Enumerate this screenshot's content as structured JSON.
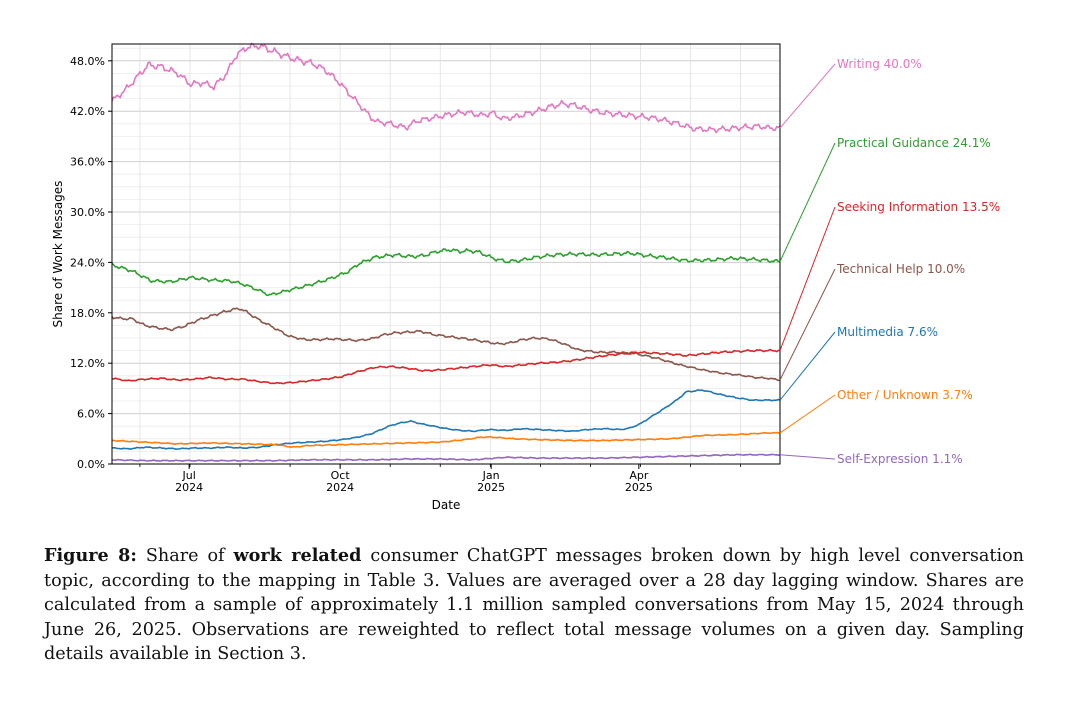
{
  "chart_data": {
    "type": "line",
    "title": "",
    "xlabel": "Date",
    "ylabel": "Share of Work Messages",
    "ylim": [
      0,
      50
    ],
    "yticks": [
      0,
      6,
      12,
      18,
      24,
      30,
      36,
      42,
      48
    ],
    "ytick_labels": [
      "0.0%",
      "6.0%",
      "12.0%",
      "18.0%",
      "24.0%",
      "30.0%",
      "36.0%",
      "42.0%",
      "48.0%"
    ],
    "x_start_day": 0,
    "x_end_day": 407,
    "x_range_label": "May 15, 2024 – June 26, 2025",
    "xticks": [
      {
        "day": 47,
        "month": "Jul",
        "year": "2024"
      },
      {
        "day": 139,
        "month": "Oct",
        "year": "2024"
      },
      {
        "day": 231,
        "month": "Jan",
        "year": "2025"
      },
      {
        "day": 321,
        "month": "Apr",
        "year": "2025"
      }
    ],
    "series": [
      {
        "name": "Writing",
        "label": "Writing  40.0%",
        "color": "#e377c2",
        "x": [
          0,
          8,
          15,
          22,
          30,
          40,
          48,
          55,
          62,
          70,
          75,
          82,
          90,
          100,
          108,
          115,
          122,
          130,
          138,
          145,
          152,
          158,
          162,
          168,
          175,
          180,
          185,
          195,
          205,
          215,
          225,
          232,
          238,
          245,
          255,
          262,
          268,
          275,
          282,
          290,
          300,
          310,
          320,
          326,
          335,
          345,
          355,
          365,
          375,
          385,
          395,
          400,
          407
        ],
        "y": [
          43.2,
          44.5,
          46.0,
          47.5,
          47.3,
          46.5,
          45.2,
          45.4,
          44.9,
          46.5,
          48.5,
          49.6,
          49.8,
          49.0,
          48.4,
          48.0,
          47.7,
          46.9,
          45.5,
          44.0,
          42.5,
          41.2,
          40.7,
          40.6,
          40.2,
          40.1,
          40.8,
          41.2,
          41.6,
          41.9,
          41.5,
          41.8,
          41.1,
          41.3,
          41.8,
          42.2,
          42.6,
          42.9,
          42.7,
          42.2,
          41.8,
          41.6,
          41.4,
          41.3,
          41.0,
          40.5,
          39.9,
          39.8,
          39.9,
          40.1,
          40.2,
          40.0,
          40.0
        ]
      },
      {
        "name": "Practical Guidance",
        "label": "Practical Guidance  24.1%",
        "color": "#2ca02c",
        "x": [
          0,
          12,
          24,
          36,
          48,
          60,
          72,
          80,
          88,
          96,
          104,
          112,
          120,
          132,
          144,
          150,
          160,
          172,
          182,
          190,
          198,
          206,
          212,
          218,
          224,
          232,
          240,
          248,
          258,
          270,
          282,
          294,
          306,
          316,
          326,
          336,
          350,
          366,
          380,
          395,
          407
        ],
        "y": [
          23.7,
          23.0,
          21.8,
          21.7,
          22.2,
          21.9,
          21.8,
          21.4,
          20.8,
          20.1,
          20.5,
          20.9,
          21.3,
          22.0,
          22.9,
          23.8,
          24.6,
          24.9,
          24.7,
          24.8,
          25.3,
          25.5,
          25.3,
          25.4,
          25.2,
          24.5,
          24.1,
          24.2,
          24.6,
          24.9,
          25.0,
          24.9,
          25.0,
          25.1,
          24.8,
          24.6,
          24.2,
          24.3,
          24.5,
          24.3,
          24.1
        ]
      },
      {
        "name": "Technical Help",
        "label": "Technical Help  10.0%",
        "color": "#8c564b",
        "x": [
          0,
          6,
          12,
          20,
          28,
          36,
          44,
          52,
          60,
          68,
          74,
          78,
          82,
          90,
          98,
          108,
          118,
          126,
          134,
          142,
          150,
          158,
          166,
          172,
          180,
          188,
          196,
          204,
          212,
          220,
          226,
          232,
          236,
          242,
          250,
          258,
          266,
          274,
          284,
          296,
          308,
          320,
          332,
          346,
          360,
          372,
          382,
          392,
          400,
          407
        ],
        "y": [
          17.5,
          17.3,
          17.3,
          16.5,
          16.2,
          16.0,
          16.4,
          17.1,
          17.6,
          18.1,
          18.4,
          18.5,
          18.1,
          17.1,
          16.3,
          15.2,
          14.8,
          14.8,
          14.9,
          14.8,
          14.7,
          14.9,
          15.4,
          15.6,
          15.7,
          15.8,
          15.4,
          15.2,
          15.0,
          14.8,
          14.6,
          14.4,
          14.3,
          14.4,
          14.8,
          15.0,
          14.9,
          14.4,
          13.6,
          13.3,
          13.3,
          13.1,
          12.6,
          11.8,
          11.2,
          10.8,
          10.6,
          10.3,
          10.2,
          10.0
        ]
      },
      {
        "name": "Seeking Information",
        "label": "Seeking Information  13.5%",
        "color": "#d62728",
        "x": [
          0,
          10,
          20,
          30,
          40,
          50,
          60,
          70,
          80,
          90,
          100,
          110,
          120,
          130,
          140,
          150,
          160,
          170,
          180,
          190,
          200,
          210,
          220,
          230,
          240,
          250,
          260,
          270,
          280,
          290,
          300,
          310,
          320,
          330,
          340,
          350,
          360,
          370,
          380,
          390,
          400,
          407
        ],
        "y": [
          10.2,
          9.9,
          10.1,
          10.2,
          10.0,
          10.1,
          10.3,
          10.1,
          10.1,
          9.8,
          9.6,
          9.7,
          9.9,
          10.1,
          10.4,
          11.0,
          11.5,
          11.6,
          11.4,
          11.1,
          11.2,
          11.4,
          11.6,
          11.8,
          11.6,
          11.8,
          12.0,
          12.1,
          12.3,
          12.6,
          12.9,
          13.1,
          13.3,
          13.2,
          13.1,
          12.9,
          13.1,
          13.3,
          13.4,
          13.5,
          13.5,
          13.5
        ]
      },
      {
        "name": "Multimedia",
        "label": "Multimedia  7.6%",
        "color": "#1f77b4",
        "x": [
          0,
          10,
          20,
          30,
          40,
          50,
          60,
          70,
          80,
          90,
          100,
          110,
          120,
          130,
          140,
          150,
          158,
          164,
          170,
          176,
          182,
          188,
          196,
          204,
          212,
          220,
          230,
          240,
          250,
          260,
          270,
          280,
          290,
          300,
          310,
          316,
          322,
          330,
          338,
          344,
          350,
          360,
          370,
          380,
          390,
          400,
          407
        ],
        "y": [
          1.9,
          1.8,
          2.0,
          1.9,
          1.8,
          1.9,
          1.9,
          2.0,
          1.9,
          2.0,
          2.3,
          2.5,
          2.6,
          2.7,
          2.9,
          3.2,
          3.6,
          4.1,
          4.6,
          4.9,
          5.1,
          4.8,
          4.5,
          4.2,
          4.0,
          3.9,
          4.1,
          4.0,
          4.2,
          4.1,
          4.0,
          3.9,
          4.1,
          4.2,
          4.1,
          4.3,
          4.8,
          5.8,
          6.8,
          7.6,
          8.6,
          8.8,
          8.3,
          7.9,
          7.6,
          7.6,
          7.6
        ]
      },
      {
        "name": "Other / Unknown",
        "label": "Other / Unknown  3.7%",
        "color": "#ff7f0e",
        "x": [
          0,
          20,
          40,
          60,
          80,
          100,
          110,
          120,
          140,
          160,
          180,
          200,
          215,
          225,
          232,
          245,
          260,
          280,
          300,
          320,
          340,
          350,
          360,
          380,
          400,
          407
        ],
        "y": [
          2.8,
          2.6,
          2.4,
          2.5,
          2.4,
          2.3,
          2.0,
          2.2,
          2.3,
          2.4,
          2.5,
          2.6,
          2.9,
          3.2,
          3.2,
          3.0,
          2.9,
          2.8,
          2.8,
          2.9,
          3.0,
          3.2,
          3.4,
          3.5,
          3.7,
          3.7
        ]
      },
      {
        "name": "Self-Expression",
        "label": "Self-Expression  1.1%",
        "color": "#9467bd",
        "x": [
          0,
          20,
          40,
          60,
          80,
          100,
          120,
          140,
          160,
          180,
          200,
          220,
          240,
          260,
          280,
          300,
          320,
          340,
          360,
          380,
          400,
          407
        ],
        "y": [
          0.5,
          0.4,
          0.4,
          0.4,
          0.4,
          0.4,
          0.5,
          0.5,
          0.5,
          0.6,
          0.6,
          0.5,
          0.8,
          0.7,
          0.7,
          0.7,
          0.8,
          0.9,
          1.0,
          1.1,
          1.1,
          1.1
        ]
      }
    ]
  },
  "caption": {
    "label": "Figure 8:",
    "part1": " Share of ",
    "bold": "work related",
    "part2": " consumer ChatGPT messages broken down by high level conversation topic, according to the mapping in Table 3. Values are averaged over a 28 day lagging window. Shares are calculated from a sample of approximately 1.1 million sampled conversations from May 15, 2024 through June 26, 2025. Observations are reweighted to reflect total message volumes on a given day. Sampling details available in Section 3."
  }
}
